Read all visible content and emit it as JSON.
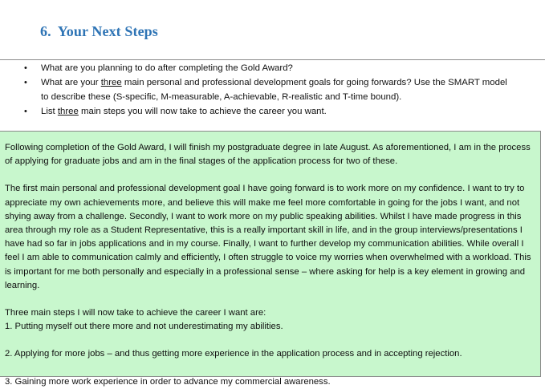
{
  "heading": {
    "number": "6.",
    "title": "Your Next Steps"
  },
  "bullets": [
    {
      "parts": [
        "What are you planning to do after completing the Gold Award?"
      ]
    },
    {
      "parts": [
        "What are your ",
        "three",
        " main personal and professional development goals for going forwards? Use the SMART model to describe these (S-specific, M-measurable, A-achievable, R-realistic and T-time bound)."
      ]
    },
    {
      "parts": [
        "List ",
        "three",
        " main steps you will now take to achieve the career you want."
      ]
    }
  ],
  "answer": {
    "paragraph_1": "Following completion of the Gold Award, I will finish my postgraduate degree in late August. As aforementioned, I am in the process of applying for graduate jobs and am in the final stages of the application process for two of these.",
    "paragraph_2": "The first main personal and professional development goal I have going forward is to work more on my confidence. I want to try to appreciate my own achievements more, and believe this will make me feel more comfortable in going for the jobs I want, and not shying away from a challenge. Secondly, I want to work more on my public speaking abilities. Whilst I have made progress in this area through my role as a Student Representative, this is a really important skill in life, and in the group interviews/presentations I have had so far in jobs applications and in my course. Finally, I want to further develop my communication abilities. While overall I feel I am able to communication calmly and efficiently, I often struggle to voice my worries when overwhelmed with a workload. This is important for me both personally and especially in a professional sense – where asking for help is a key element in growing and learning.",
    "steps_intro": "Three main steps I will now take to achieve the career I want are:",
    "step_1": "1. Putting myself out there more and not underestimating my abilities.",
    "step_2": "2. Applying for more jobs – and thus getting more experience in the application process and in accepting rejection.",
    "step_3": "3. Gaining more work experience in order to advance my commercial awareness."
  }
}
